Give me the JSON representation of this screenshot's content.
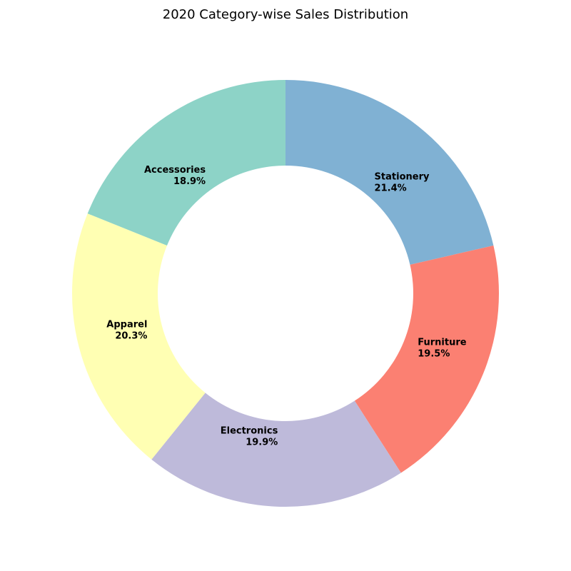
{
  "chart_data": {
    "type": "pie",
    "title": "2020 Category-wise Sales Distribution",
    "donut": true,
    "start_angle_deg": 90,
    "direction": "clockwise",
    "slices": [
      {
        "label": "Stationery",
        "value": 21.4,
        "pct_label": "21.4%",
        "color": "#80b1d3"
      },
      {
        "label": "Furniture",
        "value": 19.5,
        "pct_label": "19.5%",
        "color": "#fb8072"
      },
      {
        "label": "Electronics",
        "value": 19.9,
        "pct_label": "19.9%",
        "color": "#bebada"
      },
      {
        "label": "Apparel",
        "value": 20.3,
        "pct_label": "20.3%",
        "color": "#ffffb3"
      },
      {
        "label": "Accessories",
        "value": 18.9,
        "pct_label": "18.9%",
        "color": "#8dd3c7"
      }
    ]
  }
}
